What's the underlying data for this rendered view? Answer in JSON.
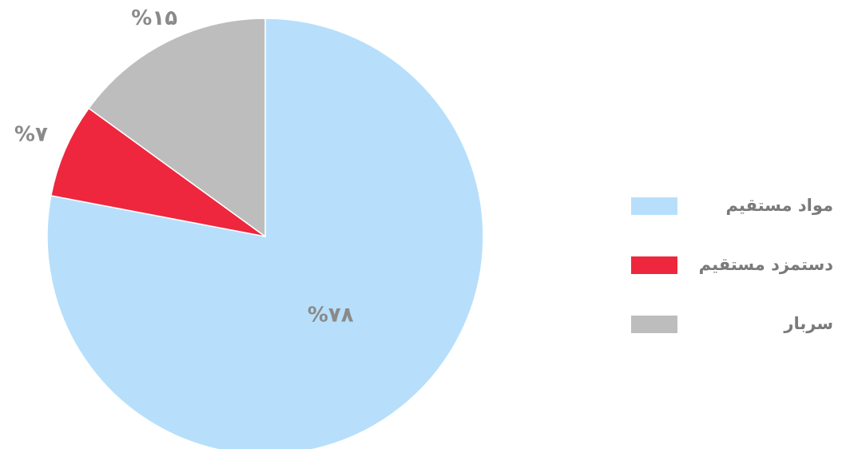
{
  "chart_data": {
    "type": "pie",
    "categories": [
      "مواد مستقیم",
      "دستمزد مستقیم",
      "سربار"
    ],
    "values": [
      78,
      7,
      15
    ],
    "value_labels": [
      "%۷۸",
      "%۷",
      "%۱۵"
    ],
    "colors": [
      "#b7dffb",
      "#ee273e",
      "#bdbdbd"
    ],
    "legend": "right"
  }
}
